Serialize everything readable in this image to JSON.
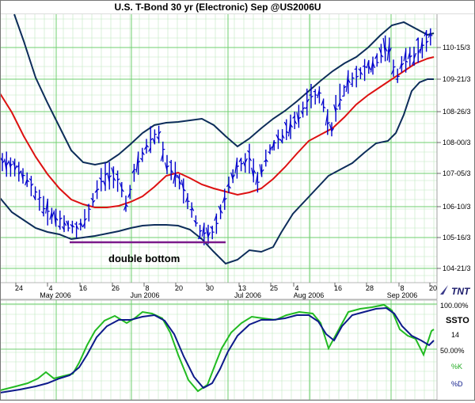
{
  "chart_data": {
    "type": "line",
    "title": "U.S. T-Bond 30 yr (Electronic) Sep @US2006U",
    "price_panel": {
      "y_tick_labels": [
        "110-15/3",
        "109-21/3",
        "108-26/3",
        "108-00/3",
        "107-05/3",
        "106-10/3",
        "105-16/3",
        "104-21/3"
      ],
      "x_day_labels": [
        "24",
        "4",
        "16",
        "26",
        "8",
        "20",
        "30",
        "13",
        "25",
        "4",
        "16",
        "28",
        "8",
        "20"
      ],
      "x_month_labels": [
        "May 2006",
        "Jun 2006",
        "Jul 2006",
        "Aug 2006",
        "Sep 2006"
      ],
      "series": [
        {
          "name": "bollinger-upper",
          "color": "#0d2d5a"
        },
        {
          "name": "moving-average",
          "color": "#dd1111"
        },
        {
          "name": "bollinger-lower",
          "color": "#0d2d5a"
        },
        {
          "name": "price-bars",
          "color": "#0000cc"
        }
      ],
      "annotation": {
        "text": "double bottom",
        "level": "105-18"
      }
    },
    "oscillator_panel": {
      "name": "SSTO",
      "period": "14",
      "y_tick_labels": [
        "100.00%",
        "50.00%"
      ],
      "legend": [
        "%K",
        "%D"
      ],
      "colors": {
        "k": "#22bb22",
        "d": "#0d1a8a"
      }
    },
    "grid": true
  },
  "branding": {
    "logo_text": "TNT"
  }
}
